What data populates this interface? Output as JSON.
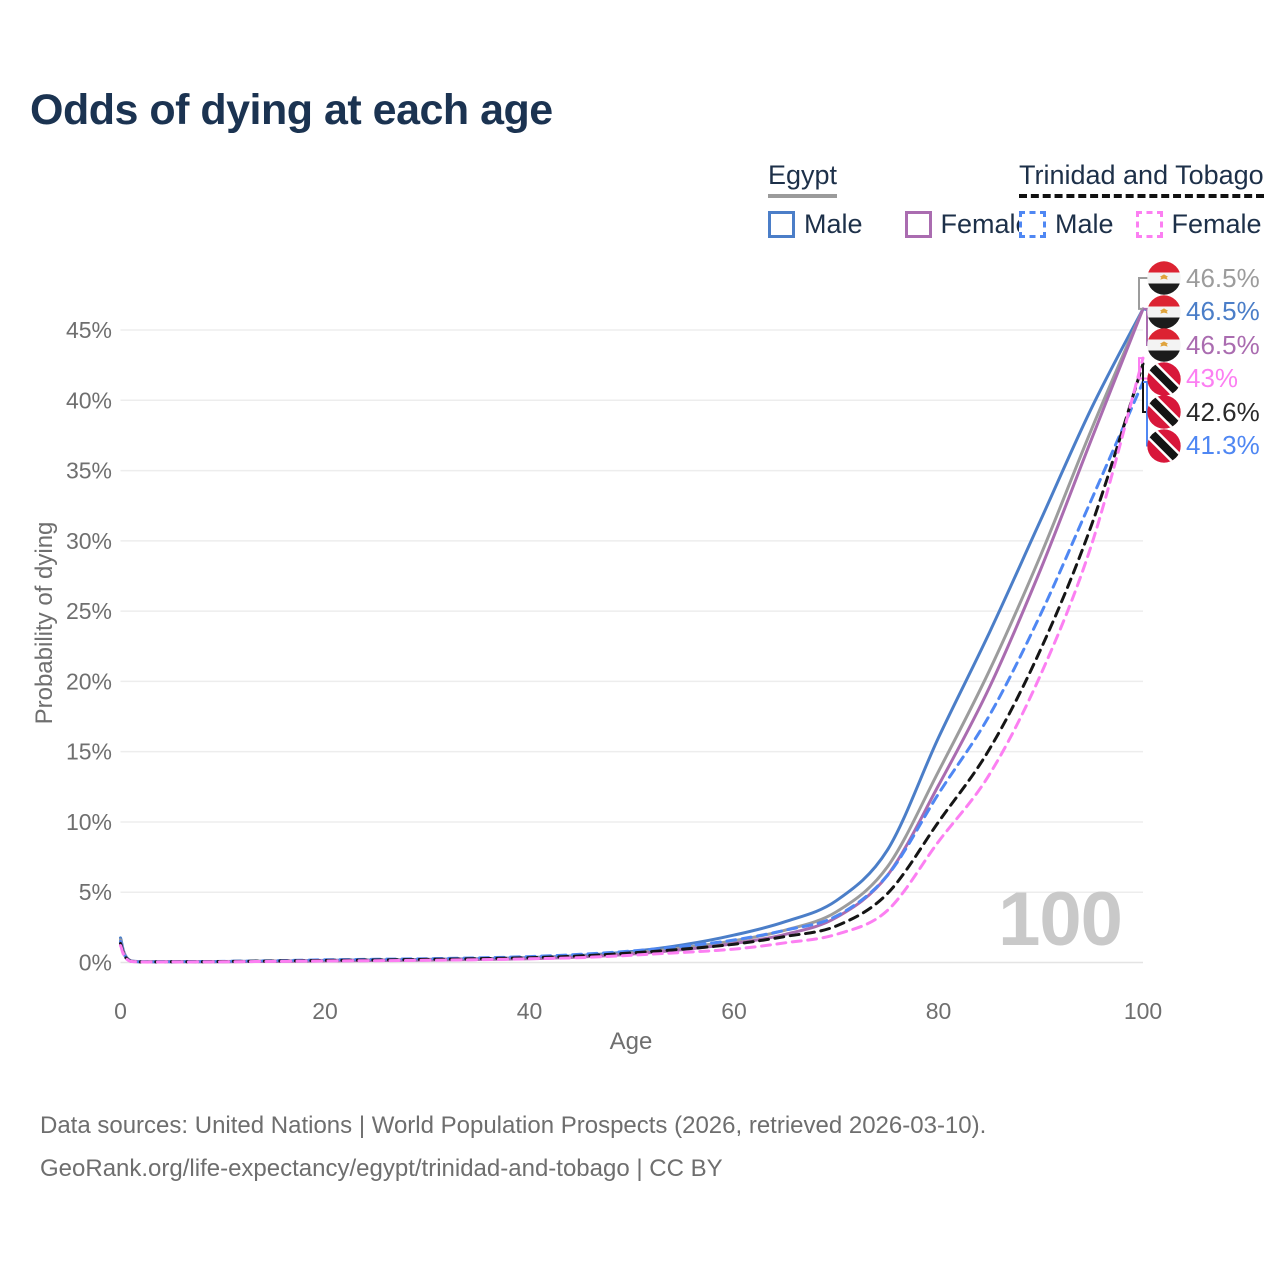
{
  "title": "Odds of dying at each age",
  "watermark": "100",
  "legend": {
    "groups": [
      {
        "title": "Egypt",
        "underline": "solid",
        "items": [
          {
            "label": "Male",
            "color": "#4b7ec8",
            "dash": "solid"
          },
          {
            "label": "Female",
            "color": "#aa6cb0",
            "dash": "solid"
          }
        ]
      },
      {
        "title": "Trinidad and Tobago",
        "underline": "dashed",
        "items": [
          {
            "label": "Male",
            "color": "#4f87f3",
            "dash": "dashed"
          },
          {
            "label": "Female",
            "color": "#fc7ff2",
            "dash": "dashed"
          }
        ]
      }
    ]
  },
  "chart_data": {
    "type": "line",
    "title": "Odds of dying at each age",
    "xlabel": "Age",
    "ylabel": "Probability of dying",
    "xlim": [
      0,
      100
    ],
    "ylim": [
      0,
      47.5
    ],
    "x_ticks": [
      0,
      20,
      40,
      60,
      80,
      100
    ],
    "y_ticks_percent": [
      0,
      5,
      10,
      15,
      20,
      25,
      30,
      35,
      40,
      45
    ],
    "grid": "horizontal",
    "x": [
      0,
      1,
      5,
      10,
      15,
      20,
      25,
      30,
      35,
      40,
      45,
      50,
      55,
      60,
      65,
      70,
      75,
      80,
      85,
      90,
      95,
      100
    ],
    "series": [
      {
        "id": "egypt-male",
        "name": "Egypt Male",
        "color": "#4b7ec8",
        "dash": "solid",
        "values": [
          1.75,
          0.12,
          0.07,
          0.07,
          0.1,
          0.15,
          0.18,
          0.22,
          0.27,
          0.35,
          0.5,
          0.78,
          1.25,
          1.95,
          2.9,
          4.4,
          8.0,
          16.0,
          23.5,
          31.5,
          39.5,
          46.5
        ]
      },
      {
        "id": "egypt-total",
        "name": "Egypt Total",
        "color": "#9c9c9c",
        "dash": "solid",
        "values": [
          1.6,
          0.11,
          0.06,
          0.06,
          0.09,
          0.13,
          0.16,
          0.19,
          0.24,
          0.31,
          0.44,
          0.68,
          1.05,
          1.55,
          2.3,
          3.6,
          6.8,
          13.6,
          20.8,
          29.0,
          38.0,
          46.5
        ]
      },
      {
        "id": "egypt-female",
        "name": "Egypt Female",
        "color": "#aa6cb0",
        "dash": "solid",
        "values": [
          1.45,
          0.1,
          0.05,
          0.06,
          0.08,
          0.11,
          0.14,
          0.17,
          0.21,
          0.27,
          0.39,
          0.6,
          0.92,
          1.35,
          2.0,
          3.2,
          6.2,
          12.6,
          19.6,
          28.0,
          37.3,
          46.5
        ]
      },
      {
        "id": "tt-male",
        "name": "Trinidad and Tobago Male",
        "color": "#4f87f3",
        "dash": "dashed",
        "values": [
          1.5,
          0.1,
          0.06,
          0.08,
          0.13,
          0.19,
          0.23,
          0.27,
          0.33,
          0.42,
          0.58,
          0.82,
          1.15,
          1.6,
          2.3,
          3.3,
          6.2,
          12.0,
          17.6,
          24.8,
          33.0,
          41.3
        ]
      },
      {
        "id": "tt-total",
        "name": "Trinidad and Tobago Total",
        "color": "#151515",
        "dash": "dashed",
        "values": [
          1.35,
          0.09,
          0.05,
          0.07,
          0.11,
          0.15,
          0.18,
          0.22,
          0.27,
          0.34,
          0.47,
          0.68,
          0.95,
          1.3,
          1.85,
          2.6,
          4.9,
          10.0,
          15.2,
          22.3,
          31.2,
          42.6
        ]
      },
      {
        "id": "tt-female",
        "name": "Trinidad and Tobago Female",
        "color": "#fc7ff2",
        "dash": "dashed",
        "values": [
          1.2,
          0.08,
          0.04,
          0.05,
          0.08,
          0.11,
          0.13,
          0.16,
          0.2,
          0.26,
          0.35,
          0.52,
          0.72,
          0.95,
          1.4,
          2.0,
          3.7,
          8.6,
          13.4,
          20.5,
          29.8,
          43.0
        ]
      }
    ],
    "end_labels": [
      {
        "text": "46.5%",
        "color": "#9c9c9c",
        "flag": "egypt",
        "series": "egypt-total"
      },
      {
        "text": "46.5%",
        "color": "#4b7ec8",
        "flag": "egypt",
        "series": "egypt-male"
      },
      {
        "text": "46.5%",
        "color": "#aa6cb0",
        "flag": "egypt",
        "series": "egypt-female"
      },
      {
        "text": "43%",
        "color": "#fc7ff2",
        "flag": "trinidad-and-tobago",
        "series": "tt-female"
      },
      {
        "text": "42.6%",
        "color": "#2a2a2a",
        "flag": "trinidad-and-tobago",
        "series": "tt-total"
      },
      {
        "text": "41.3%",
        "color": "#4f87f3",
        "flag": "trinidad-and-tobago",
        "series": "tt-male"
      }
    ],
    "hover_age_indicator": "100"
  },
  "footer": {
    "line1": "Data sources: United Nations | World Population Prospects (2026, retrieved 2026-03-10).",
    "line2": "GeoRank.org/life-expectancy/egypt/trinidad-and-tobago | CC BY"
  }
}
